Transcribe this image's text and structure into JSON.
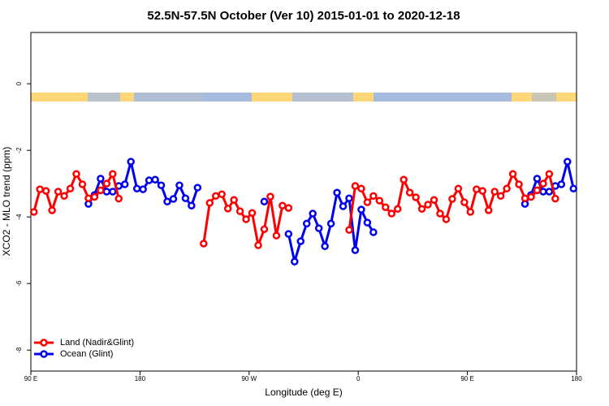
{
  "chart_data": {
    "type": "line",
    "title": "52.5N-57.5N October (Ver 10)   2015-01-01 to 2020-12-18",
    "x_label": "Longitude (deg E)",
    "y_label": "XCO2 - MLO trend (ppm)",
    "x": [
      92.5,
      97.5,
      102.5,
      107.5,
      112.5,
      117.5,
      122.5,
      127.5,
      132.5,
      137.5,
      142.5,
      147.5,
      152.5,
      157.5,
      162.5,
      167.5,
      172.5,
      177.5,
      182.5,
      187.5,
      192.5,
      197.5,
      202.5,
      207.5,
      212.5,
      217.5,
      222.5,
      227.5,
      232.5,
      237.5,
      242.5,
      247.5,
      252.5,
      257.5,
      262.5,
      267.5,
      272.5,
      277.5,
      282.5,
      287.5,
      292.5,
      297.5,
      302.5,
      307.5,
      312.5,
      317.5,
      322.5,
      327.5,
      332.5,
      337.5,
      342.5,
      347.5,
      352.5,
      357.5,
      362.5,
      367.5,
      372.5,
      377.5,
      382.5,
      387.5,
      392.5,
      397.5,
      402.5,
      407.5,
      412.5,
      417.5,
      422.5,
      427.5,
      432.5,
      437.5,
      442.5,
      447.5,
      452.5,
      457.5,
      462.5,
      467.5,
      472.5,
      477.5,
      482.5,
      487.5,
      492.5,
      497.5,
      502.5,
      507.5,
      512.5,
      517.5,
      522.5,
      527.5,
      532.5,
      537.5
    ],
    "series": [
      {
        "name": "Land (Nadir&Glint)",
        "color": "#ff0000",
        "values": [
          -3.85,
          -3.17,
          -3.22,
          -3.8,
          -3.24,
          -3.37,
          -3.15,
          -2.71,
          -3.02,
          -3.44,
          -3.4,
          -3.2,
          -3.0,
          -2.71,
          -3.45,
          null,
          null,
          null,
          null,
          null,
          null,
          null,
          null,
          null,
          null,
          null,
          null,
          null,
          -4.8,
          -3.58,
          -3.37,
          -3.32,
          -3.75,
          -3.49,
          -3.83,
          -4.07,
          -3.88,
          -4.85,
          -4.37,
          -3.39,
          -4.56,
          -3.66,
          -3.73,
          null,
          null,
          null,
          null,
          null,
          null,
          null,
          null,
          null,
          -4.39,
          -3.07,
          -3.15,
          -3.56,
          -3.37,
          -3.51,
          -3.71,
          -3.9,
          -3.76,
          -2.88,
          -3.27,
          -3.41,
          -3.76,
          -3.63,
          -3.49,
          -3.9,
          -4.07,
          -3.46,
          -3.15,
          -3.56,
          -3.85,
          -3.17,
          -3.22,
          -3.8,
          -3.24,
          -3.37,
          -3.15,
          -2.71,
          -3.02,
          -3.44,
          -3.4,
          -3.2,
          -3.0,
          -2.71,
          -3.45,
          null,
          null,
          null
        ]
      },
      {
        "name": "Ocean (Glint)",
        "color": "#0000ee",
        "values": [
          null,
          null,
          null,
          null,
          null,
          null,
          null,
          null,
          null,
          -3.61,
          -3.34,
          -2.85,
          -3.24,
          -3.24,
          -3.07,
          -3.02,
          -2.34,
          -3.15,
          -3.17,
          -2.9,
          -2.88,
          -3.05,
          -3.54,
          -3.46,
          -3.05,
          -3.44,
          -3.66,
          -3.12,
          null,
          null,
          null,
          null,
          null,
          null,
          null,
          null,
          null,
          null,
          -3.54,
          null,
          null,
          null,
          -4.51,
          -5.34,
          -4.73,
          -4.2,
          -3.9,
          -4.34,
          -4.88,
          -4.2,
          -3.27,
          -3.68,
          -3.44,
          -5.0,
          -3.78,
          -4.17,
          -4.46,
          null,
          null,
          null,
          null,
          null,
          null,
          null,
          null,
          null,
          null,
          null,
          null,
          null,
          null,
          null,
          null,
          null,
          null,
          null,
          null,
          null,
          null,
          null,
          null,
          -3.61,
          -3.34,
          -2.85,
          -3.24,
          -3.24,
          -3.07,
          -3.02,
          -2.34,
          -3.15
        ]
      }
    ],
    "xlim": [
      90,
      540
    ],
    "xticks": [
      {
        "value": 90,
        "label": "90 E"
      },
      180,
      {
        "value": 270,
        "label": "90 W"
      },
      {
        "value": 360,
        "label": "0"
      },
      {
        "value": 450,
        "label": "90 E"
      },
      {
        "value": 540,
        "label": "180"
      }
    ],
    "ylim": [
      -8.63,
      1.54
    ],
    "yticks": [
      0,
      -2,
      -4,
      -6,
      -8
    ],
    "legend": "bottom-left"
  }
}
